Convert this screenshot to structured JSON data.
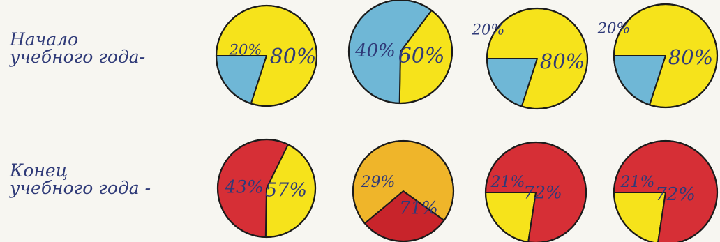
{
  "colors": {
    "yellow": "#f6e31b",
    "blue": "#6fb7d6",
    "red": "#d62f36",
    "red_dark": "#c8242b",
    "orange": "#efb52a",
    "outline": "#1b1b1b",
    "ink": "#2f3a78"
  },
  "rows": {
    "start": {
      "label_line1": "Начало",
      "label_line2": "учебного года-"
    },
    "end": {
      "label_line1": "Конец",
      "label_line2": "учебного года -"
    }
  },
  "chart_data": [
    {
      "type": "pie",
      "row": "start",
      "slices": [
        {
          "label": "20%",
          "value": 20,
          "color": "blue"
        },
        {
          "label": "80%",
          "value": 80,
          "color": "yellow"
        }
      ]
    },
    {
      "type": "pie",
      "row": "start",
      "slices": [
        {
          "label": "40%",
          "value": 40,
          "color": "yellow"
        },
        {
          "label": "60%",
          "value": 60,
          "color": "blue"
        }
      ]
    },
    {
      "type": "pie",
      "row": "start",
      "slices": [
        {
          "label": "20%",
          "value": 20,
          "color": "blue"
        },
        {
          "label": "80%",
          "value": 80,
          "color": "yellow"
        }
      ]
    },
    {
      "type": "pie",
      "row": "start",
      "slices": [
        {
          "label": "20%",
          "value": 20,
          "color": "blue"
        },
        {
          "label": "80%",
          "value": 80,
          "color": "yellow"
        }
      ]
    },
    {
      "type": "pie",
      "row": "end",
      "slices": [
        {
          "label": "43%",
          "value": 43,
          "color": "yellow"
        },
        {
          "label": "57%",
          "value": 57,
          "color": "red"
        }
      ]
    },
    {
      "type": "pie",
      "row": "end",
      "slices": [
        {
          "label": "29%",
          "value": 29,
          "color": "red_dark"
        },
        {
          "label": "71%",
          "value": 71,
          "color": "orange"
        }
      ]
    },
    {
      "type": "pie",
      "row": "end",
      "slices": [
        {
          "label": "21%",
          "value": 21,
          "color": "yellow"
        },
        {
          "label": "72%",
          "value": 72,
          "color": "red"
        }
      ]
    },
    {
      "type": "pie",
      "row": "end",
      "slices": [
        {
          "label": "21%",
          "value": 21,
          "color": "yellow"
        },
        {
          "label": "72%",
          "value": 72,
          "color": "red"
        }
      ]
    }
  ]
}
